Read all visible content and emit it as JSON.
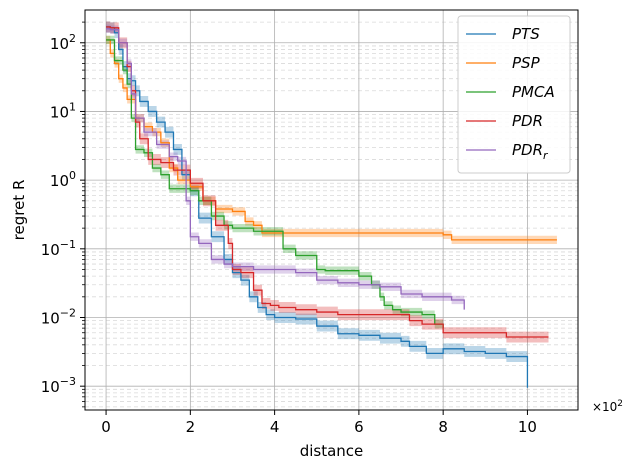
{
  "chart_data": {
    "type": "line",
    "title": "",
    "xlabel": "distance",
    "ylabel": "regret R",
    "x_multiplier_label": "×10",
    "x_multiplier_exp": "2",
    "xlim": [
      -0.5,
      11.2
    ],
    "ylim": [
      0.00045,
      300
    ],
    "yscale": "log",
    "grid": "major and minor",
    "legend_position": "upper right",
    "x_ticks": [
      {
        "value": 0,
        "label": "0"
      },
      {
        "value": 2,
        "label": "2"
      },
      {
        "value": 4,
        "label": "4"
      },
      {
        "value": 6,
        "label": "6"
      },
      {
        "value": 8,
        "label": "8"
      },
      {
        "value": 10,
        "label": "10"
      }
    ],
    "y_ticks": [
      {
        "value": 0.001,
        "base": "10",
        "exp": "−3"
      },
      {
        "value": 0.01,
        "base": "10",
        "exp": "−2"
      },
      {
        "value": 0.1,
        "base": "10",
        "exp": "−1"
      },
      {
        "value": 1,
        "base": "10",
        "exp": "0"
      },
      {
        "value": 10,
        "base": "10",
        "exp": "1"
      },
      {
        "value": 100,
        "base": "10",
        "exp": "2"
      }
    ],
    "series": [
      {
        "name": "PTS",
        "legend_base": "PTS",
        "legend_sub": "",
        "color": "#1f77b4",
        "band_factor": 1.2,
        "x": [
          0,
          0.1,
          0.2,
          0.3,
          0.4,
          0.5,
          0.6,
          0.7,
          0.8,
          1.0,
          1.2,
          1.4,
          1.6,
          1.8,
          2.0,
          2.2,
          2.5,
          2.8,
          3.0,
          3.2,
          3.4,
          3.6,
          3.8,
          4.0,
          4.5,
          5.0,
          5.5,
          6.0,
          6.5,
          7.0,
          7.2,
          7.6,
          8.0,
          8.5,
          9.0,
          9.5,
          9.8,
          10.0
        ],
        "y": [
          170,
          165,
          140,
          80,
          45,
          30,
          28,
          20,
          14,
          10,
          7,
          5,
          2.8,
          1.2,
          0.7,
          0.28,
          0.15,
          0.07,
          0.045,
          0.035,
          0.02,
          0.014,
          0.011,
          0.01,
          0.0095,
          0.0075,
          0.0058,
          0.0055,
          0.005,
          0.0045,
          0.0038,
          0.003,
          0.0035,
          0.0032,
          0.003,
          0.0027,
          0.0027,
          0.00095
        ]
      },
      {
        "name": "PSP",
        "legend_base": "PSP",
        "legend_sub": "",
        "color": "#ff7f0e",
        "band_factor": 1.15,
        "x": [
          0,
          0.1,
          0.2,
          0.3,
          0.4,
          0.5,
          0.7,
          0.9,
          1.1,
          1.3,
          1.5,
          1.7,
          2.0,
          2.3,
          2.6,
          3.0,
          3.3,
          3.5,
          3.7,
          4.0,
          4.5,
          5.0,
          6.0,
          7.0,
          7.9,
          8.0,
          8.2,
          9.0,
          10.0,
          10.7
        ],
        "y": [
          110,
          70,
          50,
          30,
          22,
          15,
          8,
          6,
          5,
          3.5,
          1.5,
          1.0,
          0.8,
          0.5,
          0.38,
          0.35,
          0.25,
          0.22,
          0.17,
          0.17,
          0.17,
          0.17,
          0.17,
          0.17,
          0.17,
          0.16,
          0.135,
          0.135,
          0.135,
          0.135
        ]
      },
      {
        "name": "PMCA",
        "legend_base": "PMCA",
        "legend_sub": "",
        "color": "#2ca02c",
        "band_factor": 1.15,
        "x": [
          0,
          0.2,
          0.4,
          0.5,
          0.6,
          0.7,
          0.9,
          1.1,
          1.3,
          1.5,
          2.0,
          2.2,
          2.5,
          2.8,
          3.0,
          3.5,
          4.0,
          4.2,
          4.5,
          5.0,
          5.2,
          5.5,
          6.0,
          6.3,
          6.5,
          6.6,
          6.8,
          7.0,
          7.5,
          7.8,
          8.0
        ],
        "y": [
          110,
          55,
          40,
          25,
          8,
          2.8,
          2.5,
          1.5,
          1.2,
          0.75,
          0.7,
          0.5,
          0.3,
          0.22,
          0.2,
          0.18,
          0.18,
          0.1,
          0.08,
          0.05,
          0.048,
          0.048,
          0.04,
          0.03,
          0.02,
          0.015,
          0.013,
          0.012,
          0.011,
          0.008,
          0.007
        ]
      },
      {
        "name": "PDR",
        "legend_base": "PDR",
        "legend_sub": "",
        "color": "#d62728",
        "band_factor": 1.2,
        "x": [
          0,
          0.1,
          0.3,
          0.5,
          0.6,
          0.7,
          0.8,
          1.0,
          1.3,
          1.6,
          2.0,
          2.3,
          2.6,
          2.9,
          3.0,
          3.2,
          3.5,
          3.7,
          3.9,
          4.1,
          4.5,
          5.0,
          5.5,
          6.0,
          7.0,
          7.2,
          7.5,
          8.0,
          8.5,
          9.0,
          9.5,
          10.0,
          10.5
        ],
        "y": [
          170,
          165,
          100,
          45,
          20,
          7,
          4,
          2,
          1.8,
          1.4,
          0.9,
          0.5,
          0.22,
          0.12,
          0.05,
          0.045,
          0.025,
          0.016,
          0.015,
          0.014,
          0.013,
          0.012,
          0.011,
          0.011,
          0.011,
          0.009,
          0.008,
          0.006,
          0.006,
          0.006,
          0.0052,
          0.0052,
          0.0052
        ]
      },
      {
        "name": "PDR_r",
        "legend_base": "PDR",
        "legend_sub": "r",
        "color": "#9467bd",
        "band_factor": 1.15,
        "x": [
          0,
          0.1,
          0.3,
          0.5,
          0.6,
          0.7,
          0.9,
          1.2,
          1.5,
          1.7,
          1.9,
          2.0,
          2.2,
          2.5,
          2.8,
          3.0,
          3.5,
          4.0,
          4.5,
          5.0,
          5.5,
          6.0,
          6.5,
          7.0,
          7.5,
          8.0,
          8.2,
          8.5
        ],
        "y": [
          160,
          155,
          100,
          50,
          18,
          8,
          5,
          3.3,
          2.2,
          1.9,
          0.5,
          0.15,
          0.12,
          0.07,
          0.06,
          0.055,
          0.05,
          0.05,
          0.045,
          0.035,
          0.032,
          0.03,
          0.028,
          0.022,
          0.02,
          0.02,
          0.018,
          0.013
        ]
      }
    ]
  }
}
